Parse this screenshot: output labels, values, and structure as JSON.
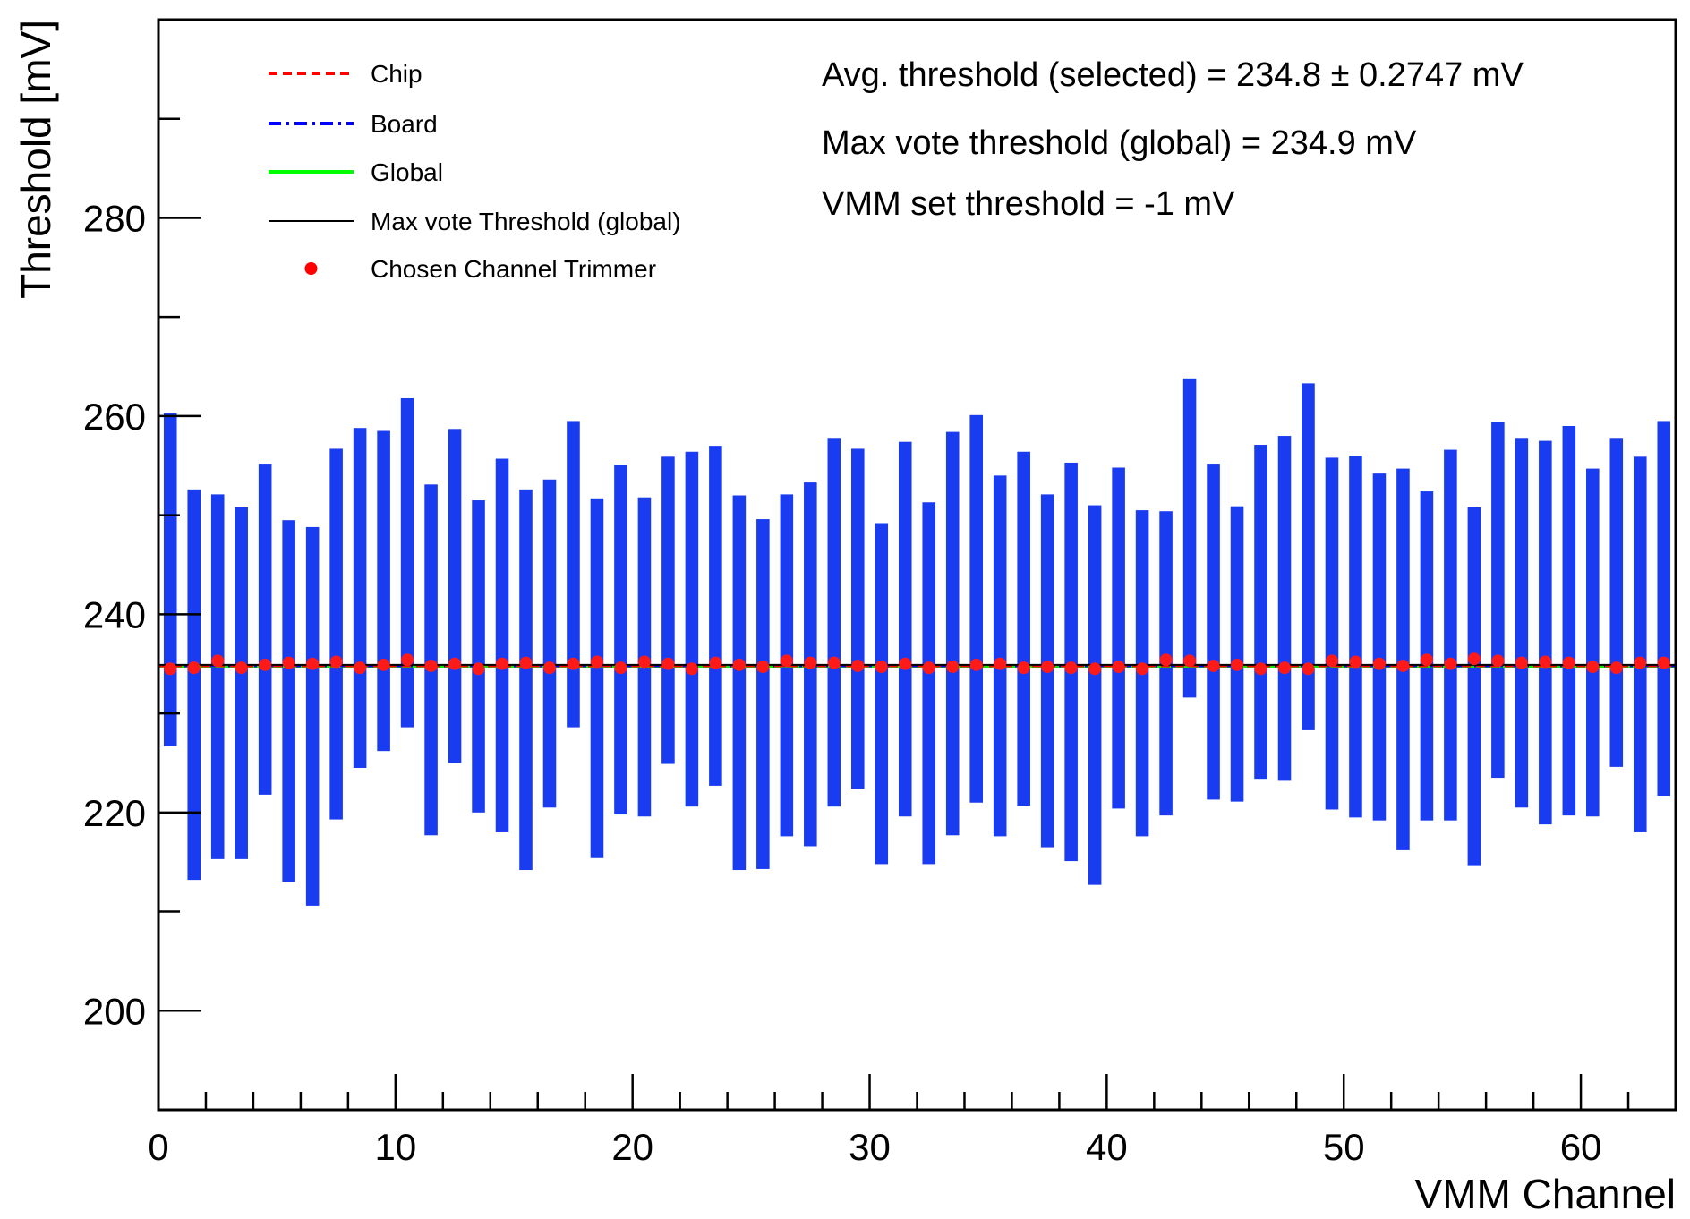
{
  "chart_data": {
    "type": "bar",
    "title": "",
    "xlabel": "VMM Channel",
    "ylabel": "Threshold [mV]",
    "xlim": [
      0,
      64
    ],
    "ylim": [
      190,
      300
    ],
    "xticks": [
      0,
      10,
      20,
      30,
      40,
      50,
      60
    ],
    "yticks": [
      200,
      220,
      240,
      260,
      280
    ],
    "grid": false,
    "legend_placement": "top-left",
    "legend": [
      {
        "label": "Chip",
        "style": "dashed",
        "color": "#ff0000"
      },
      {
        "label": "Board",
        "style": "dash-dot",
        "color": "#0000ff"
      },
      {
        "label": "Global",
        "style": "solid",
        "color": "#00ff00"
      },
      {
        "label": "Max vote Threshold (global)",
        "style": "solid",
        "color": "#000000"
      },
      {
        "label": "Chosen Channel Trimmer",
        "style": "marker",
        "color": "#ff0000"
      }
    ],
    "annotations": [
      "Avg. threshold (selected) = 234.8 ± 0.2747 mV",
      "Max vote threshold (global) = 234.9 mV",
      "VMM set threshold = -1 mV"
    ],
    "lines": {
      "chip": 234.8,
      "board": 234.8,
      "global": 234.8,
      "max_vote": 234.9
    },
    "bar_color": "#1a3cf0",
    "series": [
      {
        "name": "Board",
        "x": [
          0.5,
          1.5,
          2.5,
          3.5,
          4.5,
          5.5,
          6.5,
          7.5,
          8.5,
          9.5,
          10.5,
          11.5,
          12.5,
          13.5,
          14.5,
          15.5,
          16.5,
          17.5,
          18.5,
          19.5,
          20.5,
          21.5,
          22.5,
          23.5,
          24.5,
          25.5,
          26.5,
          27.5,
          28.5,
          29.5,
          30.5,
          31.5,
          32.5,
          33.5,
          34.5,
          35.5,
          36.5,
          37.5,
          38.5,
          39.5,
          40.5,
          41.5,
          42.5,
          43.5,
          44.5,
          45.5,
          46.5,
          47.5,
          48.5,
          49.5,
          50.5,
          51.5,
          52.5,
          53.5,
          54.5,
          55.5,
          56.5,
          57.5,
          58.5,
          59.5,
          60.5,
          61.5,
          62.5,
          63.5
        ],
        "low": [
          226.7,
          213.2,
          215.3,
          215.3,
          221.8,
          213.0,
          210.6,
          219.3,
          224.5,
          226.2,
          228.6,
          217.7,
          225.0,
          220.0,
          218.0,
          214.2,
          220.5,
          228.6,
          215.4,
          219.8,
          219.6,
          224.9,
          220.6,
          222.7,
          214.2,
          214.3,
          217.6,
          216.6,
          220.6,
          222.4,
          214.8,
          219.6,
          214.8,
          217.7,
          221.0,
          217.6,
          220.7,
          216.5,
          215.1,
          212.7,
          220.4,
          217.6,
          219.7,
          231.6,
          221.3,
          221.1,
          223.4,
          223.2,
          228.3,
          220.3,
          219.5,
          219.2,
          216.2,
          219.2,
          219.2,
          214.6,
          223.5,
          220.5,
          218.8,
          219.7,
          219.6,
          224.6,
          218.0,
          221.7
        ],
        "high": [
          260.3,
          252.6,
          252.1,
          250.8,
          255.2,
          249.5,
          248.8,
          256.7,
          258.8,
          258.5,
          261.8,
          253.1,
          258.7,
          251.5,
          255.7,
          252.6,
          253.6,
          259.5,
          251.7,
          255.1,
          251.8,
          255.9,
          256.4,
          257.0,
          252.0,
          249.6,
          252.1,
          253.3,
          257.8,
          256.7,
          249.2,
          257.4,
          251.3,
          258.4,
          260.1,
          254.0,
          256.4,
          252.1,
          255.3,
          251.0,
          254.8,
          250.5,
          250.4,
          263.8,
          255.2,
          250.9,
          257.1,
          258.0,
          263.3,
          255.8,
          256.0,
          254.2,
          254.7,
          252.4,
          256.6,
          250.8,
          259.4,
          257.8,
          257.5,
          259.0,
          254.7,
          257.8,
          255.9,
          259.5
        ]
      },
      {
        "name": "Chosen Channel Trimmer",
        "x": [
          0.5,
          1.5,
          2.5,
          3.5,
          4.5,
          5.5,
          6.5,
          7.5,
          8.5,
          9.5,
          10.5,
          11.5,
          12.5,
          13.5,
          14.5,
          15.5,
          16.5,
          17.5,
          18.5,
          19.5,
          20.5,
          21.5,
          22.5,
          23.5,
          24.5,
          25.5,
          26.5,
          27.5,
          28.5,
          29.5,
          30.5,
          31.5,
          32.5,
          33.5,
          34.5,
          35.5,
          36.5,
          37.5,
          38.5,
          39.5,
          40.5,
          41.5,
          42.5,
          43.5,
          44.5,
          45.5,
          46.5,
          47.5,
          48.5,
          49.5,
          50.5,
          51.5,
          52.5,
          53.5,
          54.5,
          55.5,
          56.5,
          57.5,
          58.5,
          59.5,
          60.5,
          61.5,
          62.5,
          63.5
        ],
        "values": [
          234.5,
          234.6,
          235.3,
          234.6,
          234.9,
          235.1,
          235.0,
          235.2,
          234.6,
          234.9,
          235.4,
          234.8,
          235.0,
          234.5,
          235.0,
          235.1,
          234.6,
          235.0,
          235.2,
          234.6,
          235.2,
          235.0,
          234.5,
          235.1,
          234.9,
          234.7,
          235.3,
          235.1,
          235.1,
          234.8,
          234.7,
          235.0,
          234.6,
          234.7,
          234.9,
          235.0,
          234.6,
          234.7,
          234.6,
          234.5,
          234.7,
          234.5,
          235.4,
          235.3,
          234.8,
          234.9,
          234.5,
          234.6,
          234.5,
          235.3,
          235.2,
          235.0,
          234.8,
          235.4,
          235.0,
          235.5,
          235.3,
          235.1,
          235.2,
          235.1,
          234.7,
          234.6,
          235.1,
          235.1
        ]
      }
    ]
  }
}
